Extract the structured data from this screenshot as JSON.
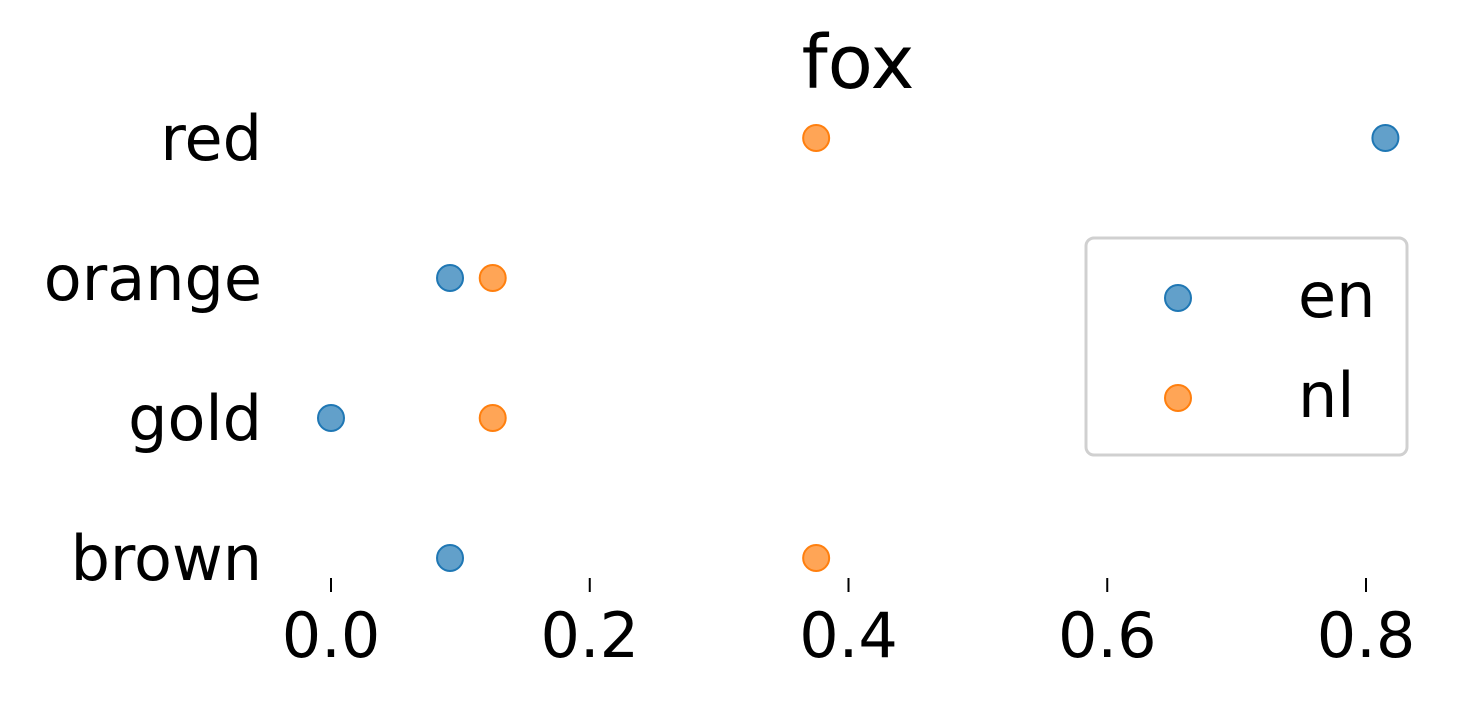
{
  "chart_data": {
    "type": "scatter",
    "title": "fox",
    "xlabel": "",
    "ylabel": "",
    "categories": [
      "red",
      "orange",
      "gold",
      "brown"
    ],
    "x_ticks": [
      "0.0",
      "0.2",
      "0.4",
      "0.6",
      "0.8"
    ],
    "x_tick_values": [
      0.0,
      0.2,
      0.4,
      0.6,
      0.8
    ],
    "xlim": [
      -0.02,
      0.84
    ],
    "grid": false,
    "legend_position": "right",
    "series": [
      {
        "name": "en",
        "color": "#1f77b4",
        "values": [
          0.815,
          0.092,
          0.0,
          0.092
        ]
      },
      {
        "name": "nl",
        "color": "#ff7f0e",
        "values": [
          0.375,
          0.125,
          0.125,
          0.375
        ]
      }
    ]
  }
}
